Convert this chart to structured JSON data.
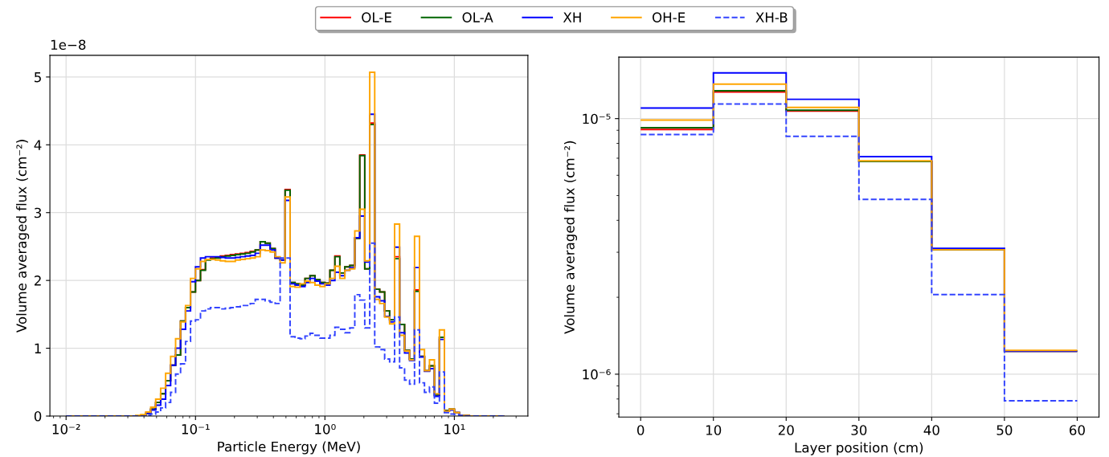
{
  "chart_data": [
    {
      "type": "histogram",
      "xlabel": "Particle Energy (MeV)",
      "ylabel": "Volume averaged flux (cm⁻²)",
      "annotations": [
        "1e−8"
      ],
      "log": "x",
      "grid": true,
      "legend": "top",
      "xlim": [
        0.0075,
        37
      ],
      "ylim": [
        0,
        5.32
      ],
      "xticks": [
        {
          "value": 0.01,
          "label": "10⁻²"
        },
        {
          "value": 0.1,
          "label": "10⁻¹"
        },
        {
          "value": 1,
          "label": "10⁰"
        },
        {
          "value": 10,
          "label": "10¹"
        }
      ],
      "yticks": [
        0,
        1,
        2,
        3,
        4,
        5
      ],
      "bins": [
        0.01,
        0.01093,
        0.01194,
        0.01304,
        0.01425,
        0.01557,
        0.01701,
        0.01859,
        0.02031,
        0.02219,
        0.02425,
        0.0265,
        0.02894,
        0.03162,
        0.03455,
        0.03775,
        0.04125,
        0.04507,
        0.04924,
        0.05381,
        0.05878,
        0.06424,
        0.07018,
        0.07668,
        0.08377,
        0.09155,
        0.1,
        0.1093,
        0.1194,
        0.1304,
        0.1425,
        0.1557,
        0.1701,
        0.1859,
        0.2031,
        0.2219,
        0.2425,
        0.265,
        0.2894,
        0.3162,
        0.3455,
        0.3775,
        0.4125,
        0.4507,
        0.4924,
        0.5381,
        0.5878,
        0.6424,
        0.7018,
        0.7668,
        0.8377,
        0.9155,
        1,
        1.093,
        1.194,
        1.304,
        1.425,
        1.557,
        1.701,
        1.859,
        2.031,
        2.219,
        2.425,
        2.65,
        2.894,
        3.162,
        3.455,
        3.775,
        4.125,
        4.507,
        4.924,
        5.381,
        5.878,
        6.424,
        7.018,
        7.668,
        8.377,
        9.155,
        10,
        10.93,
        11.94,
        13.04,
        14.25,
        15.57,
        17.01,
        18.59,
        20.31,
        22.19,
        24.25
      ],
      "series": [
        {
          "name": "OL-E",
          "color": "#ff0000",
          "line_style": "solid",
          "values": [
            0,
            0,
            0,
            0,
            0,
            0,
            0,
            0,
            0,
            0,
            0,
            0,
            0,
            0,
            0,
            0.01,
            0.04,
            0.1,
            0.2,
            0.33,
            0.52,
            0.75,
            0.9,
            1.4,
            1.6,
            1.83,
            2.0,
            2.16,
            2.31,
            2.33,
            2.34,
            2.36,
            2.37,
            2.38,
            2.39,
            2.4,
            2.41,
            2.43,
            2.45,
            2.57,
            2.55,
            2.47,
            2.33,
            2.3,
            3.34,
            1.97,
            1.95,
            1.93,
            2.03,
            2.07,
            2.01,
            1.97,
            1.96,
            2.15,
            2.36,
            2.11,
            2.2,
            2.22,
            2.62,
            3.85,
            2.17,
            4.32,
            1.87,
            1.83,
            1.55,
            1.42,
            2.35,
            1.35,
            0.97,
            0.84,
            1.86,
            0.88,
            0.67,
            0.74,
            0.31,
            1.16,
            0.08,
            0.1,
            0.05,
            0.01,
            0.01,
            0,
            0,
            0,
            0,
            0,
            0,
            0
          ]
        },
        {
          "name": "OL-A",
          "color": "#006400",
          "line_style": "solid",
          "values": [
            0,
            0,
            0,
            0,
            0,
            0,
            0,
            0,
            0,
            0,
            0,
            0,
            0,
            0,
            0,
            0.01,
            0.04,
            0.1,
            0.2,
            0.33,
            0.52,
            0.75,
            0.9,
            1.4,
            1.6,
            1.83,
            2.0,
            2.15,
            2.3,
            2.32,
            2.33,
            2.35,
            2.36,
            2.37,
            2.38,
            2.39,
            2.4,
            2.42,
            2.45,
            2.57,
            2.55,
            2.47,
            2.33,
            2.3,
            3.33,
            1.97,
            1.95,
            1.93,
            2.03,
            2.07,
            2.01,
            1.97,
            1.96,
            2.15,
            2.35,
            2.11,
            2.2,
            2.22,
            2.62,
            3.84,
            2.17,
            4.3,
            1.87,
            1.83,
            1.55,
            1.42,
            2.32,
            1.35,
            0.97,
            0.84,
            1.84,
            0.88,
            0.67,
            0.74,
            0.31,
            1.16,
            0.08,
            0.1,
            0.05,
            0.01,
            0.01,
            0,
            0,
            0,
            0,
            0,
            0,
            0
          ]
        },
        {
          "name": "XH",
          "color": "#0000ff",
          "line_style": "solid",
          "values": [
            0,
            0,
            0,
            0,
            0,
            0,
            0,
            0,
            0,
            0,
            0,
            0,
            0,
            0,
            0,
            0.01,
            0.04,
            0.09,
            0.16,
            0.25,
            0.45,
            0.75,
            1.0,
            1.28,
            1.55,
            1.98,
            2.2,
            2.33,
            2.35,
            2.35,
            2.35,
            2.34,
            2.33,
            2.33,
            2.34,
            2.35,
            2.36,
            2.37,
            2.4,
            2.52,
            2.52,
            2.45,
            2.33,
            2.3,
            3.18,
            1.95,
            1.93,
            1.91,
            1.97,
            2.03,
            1.99,
            1.95,
            1.93,
            2.0,
            2.12,
            2.07,
            2.15,
            2.19,
            2.63,
            2.95,
            2.27,
            4.45,
            1.76,
            1.7,
            1.47,
            1.39,
            2.49,
            1.23,
            0.93,
            0.82,
            2.19,
            0.87,
            0.66,
            0.7,
            0.29,
            1.13,
            0.07,
            0.09,
            0.05,
            0.01,
            0.01,
            0,
            0,
            0,
            0,
            0,
            0,
            0
          ]
        },
        {
          "name": "OH-E",
          "color": "#ffa500",
          "line_style": "solid",
          "values": [
            0,
            0,
            0,
            0,
            0,
            0,
            0,
            0,
            0,
            0,
            0,
            0,
            0,
            0,
            0.01,
            0.02,
            0.06,
            0.13,
            0.25,
            0.41,
            0.63,
            0.88,
            1.14,
            1.39,
            1.63,
            2.03,
            2.17,
            2.28,
            2.31,
            2.31,
            2.3,
            2.29,
            2.28,
            2.28,
            2.3,
            2.31,
            2.32,
            2.33,
            2.35,
            2.45,
            2.44,
            2.42,
            2.35,
            2.26,
            3.23,
            1.91,
            1.9,
            1.95,
            1.99,
            1.97,
            1.93,
            1.91,
            1.95,
            2.03,
            2.21,
            2.03,
            2.15,
            2.17,
            2.73,
            3.05,
            2.29,
            5.07,
            1.72,
            1.66,
            1.46,
            1.36,
            2.83,
            1.19,
            0.96,
            0.83,
            2.65,
            0.98,
            0.67,
            0.83,
            0.33,
            1.27,
            0.07,
            0.1,
            0.05,
            0.01,
            0.01,
            0,
            0,
            0,
            0,
            0,
            0,
            0
          ]
        },
        {
          "name": "XH-B",
          "color": "#3344ff",
          "line_style": "dashed",
          "values": [
            0,
            0,
            0,
            0,
            0,
            0,
            0,
            0,
            0,
            0,
            0,
            0,
            0,
            0,
            0,
            0,
            0.01,
            0.03,
            0.06,
            0.12,
            0.2,
            0.35,
            0.62,
            0.77,
            1.1,
            1.4,
            1.42,
            1.55,
            1.58,
            1.6,
            1.6,
            1.58,
            1.59,
            1.6,
            1.61,
            1.63,
            1.63,
            1.66,
            1.72,
            1.72,
            1.7,
            1.68,
            1.66,
            2.33,
            2.33,
            1.17,
            1.15,
            1.14,
            1.18,
            1.22,
            1.19,
            1.15,
            1.15,
            1.19,
            1.31,
            1.28,
            1.23,
            1.3,
            1.79,
            1.71,
            1.3,
            2.55,
            1.02,
            0.98,
            0.84,
            0.8,
            1.46,
            0.71,
            0.53,
            0.47,
            1.27,
            0.49,
            0.35,
            0.43,
            0.19,
            0.65,
            0.05,
            0.03,
            0.02,
            0.01,
            0,
            0,
            0,
            0,
            0,
            0,
            0,
            0
          ]
        }
      ]
    },
    {
      "type": "histogram",
      "xlabel": "Layer position (cm)",
      "ylabel": "Volume averaged flux (cm⁻²)",
      "log": "y",
      "grid": true,
      "xlim": [
        -3,
        63
      ],
      "ylim": [
        6.8e-07,
        1.74e-05
      ],
      "xticks": [
        0,
        10,
        20,
        30,
        40,
        50,
        60
      ],
      "yticks": [
        {
          "value": 1e-06,
          "label": "10⁻⁶"
        },
        {
          "value": 1e-05,
          "label": "10⁻⁵"
        }
      ],
      "bins": [
        0,
        10,
        20,
        30,
        40,
        50,
        60
      ],
      "series": [
        {
          "color": "#ff0000",
          "line_style": "solid",
          "values": [
            9.07e-06,
            1.27e-05,
            1.07e-05,
            6.8e-06,
            3.07e-06,
            1.23e-06
          ]
        },
        {
          "color": "#006400",
          "line_style": "solid",
          "values": [
            9.21e-06,
            1.285e-05,
            1.078e-05,
            6.8e-06,
            3.07e-06,
            1.23e-06
          ]
        },
        {
          "color": "#0000ff",
          "line_style": "solid",
          "values": [
            1.1e-05,
            1.51e-05,
            1.19e-05,
            7.1e-06,
            3.11e-06,
            1.23e-06
          ]
        },
        {
          "color": "#ffa500",
          "line_style": "solid",
          "values": [
            9.87e-06,
            1.365e-05,
            1.106e-05,
            6.84e-06,
            3.07e-06,
            1.24e-06
          ]
        },
        {
          "color": "#3344ff",
          "line_style": "dashed",
          "values": [
            8.66e-06,
            1.14e-05,
            8.52e-06,
            4.83e-06,
            2.05e-06,
            7.87e-07
          ]
        }
      ]
    }
  ]
}
